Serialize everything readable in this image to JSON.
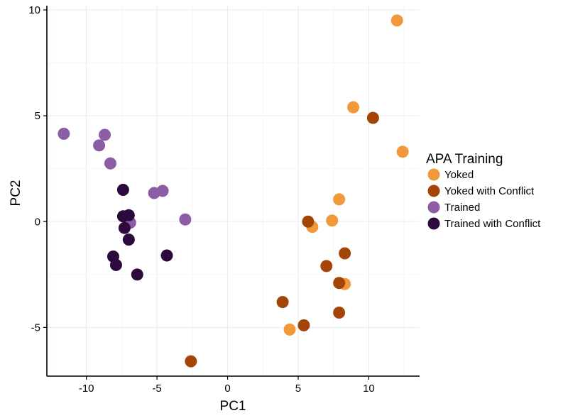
{
  "chart_data": {
    "type": "scatter",
    "xlabel": "PC1",
    "ylabel": "PC2",
    "xlim": [
      -12.8,
      13.6
    ],
    "ylim": [
      -7.3,
      10.2
    ],
    "x_ticks": [
      -10,
      -5,
      0,
      5,
      10
    ],
    "y_ticks": [
      -5,
      0,
      5,
      10
    ],
    "x_tick_labels": [
      "-10",
      "-5",
      "0",
      "5",
      "10"
    ],
    "y_tick_labels": [
      "-5",
      "0",
      "5",
      "10"
    ],
    "grid": true,
    "legend_position": "right",
    "legend_title": "APA Training",
    "series": [
      {
        "name": "Yoked",
        "color": "#F1983A",
        "points": [
          [
            12.0,
            9.5
          ],
          [
            8.9,
            5.4
          ],
          [
            12.4,
            3.3
          ],
          [
            7.9,
            1.05
          ],
          [
            7.4,
            0.05
          ],
          [
            6.0,
            -0.25
          ],
          [
            8.3,
            -2.95
          ],
          [
            4.4,
            -5.1
          ]
        ]
      },
      {
        "name": "Yoked with Conflict",
        "color": "#A34506",
        "points": [
          [
            10.3,
            4.9
          ],
          [
            5.7,
            0.0
          ],
          [
            8.3,
            -1.5
          ],
          [
            7.0,
            -2.1
          ],
          [
            7.9,
            -2.9
          ],
          [
            3.9,
            -3.8
          ],
          [
            7.9,
            -4.3
          ],
          [
            5.4,
            -4.9
          ],
          [
            -2.6,
            -6.6
          ]
        ]
      },
      {
        "name": "Trained",
        "color": "#8B5DA5",
        "points": [
          [
            -11.6,
            4.15
          ],
          [
            -8.7,
            4.1
          ],
          [
            -9.1,
            3.6
          ],
          [
            -8.3,
            2.75
          ],
          [
            -5.2,
            1.35
          ],
          [
            -4.6,
            1.45
          ],
          [
            -3.0,
            0.1
          ],
          [
            -6.9,
            -0.05
          ]
        ]
      },
      {
        "name": "Trained with Conflict",
        "color": "#2C0A3E",
        "points": [
          [
            -7.4,
            1.5
          ],
          [
            -7.4,
            0.25
          ],
          [
            -7.0,
            0.3
          ],
          [
            -7.3,
            -0.3
          ],
          [
            -7.0,
            -0.85
          ],
          [
            -8.1,
            -1.65
          ],
          [
            -7.9,
            -2.05
          ],
          [
            -4.3,
            -1.6
          ],
          [
            -6.4,
            -2.5
          ]
        ]
      }
    ]
  }
}
